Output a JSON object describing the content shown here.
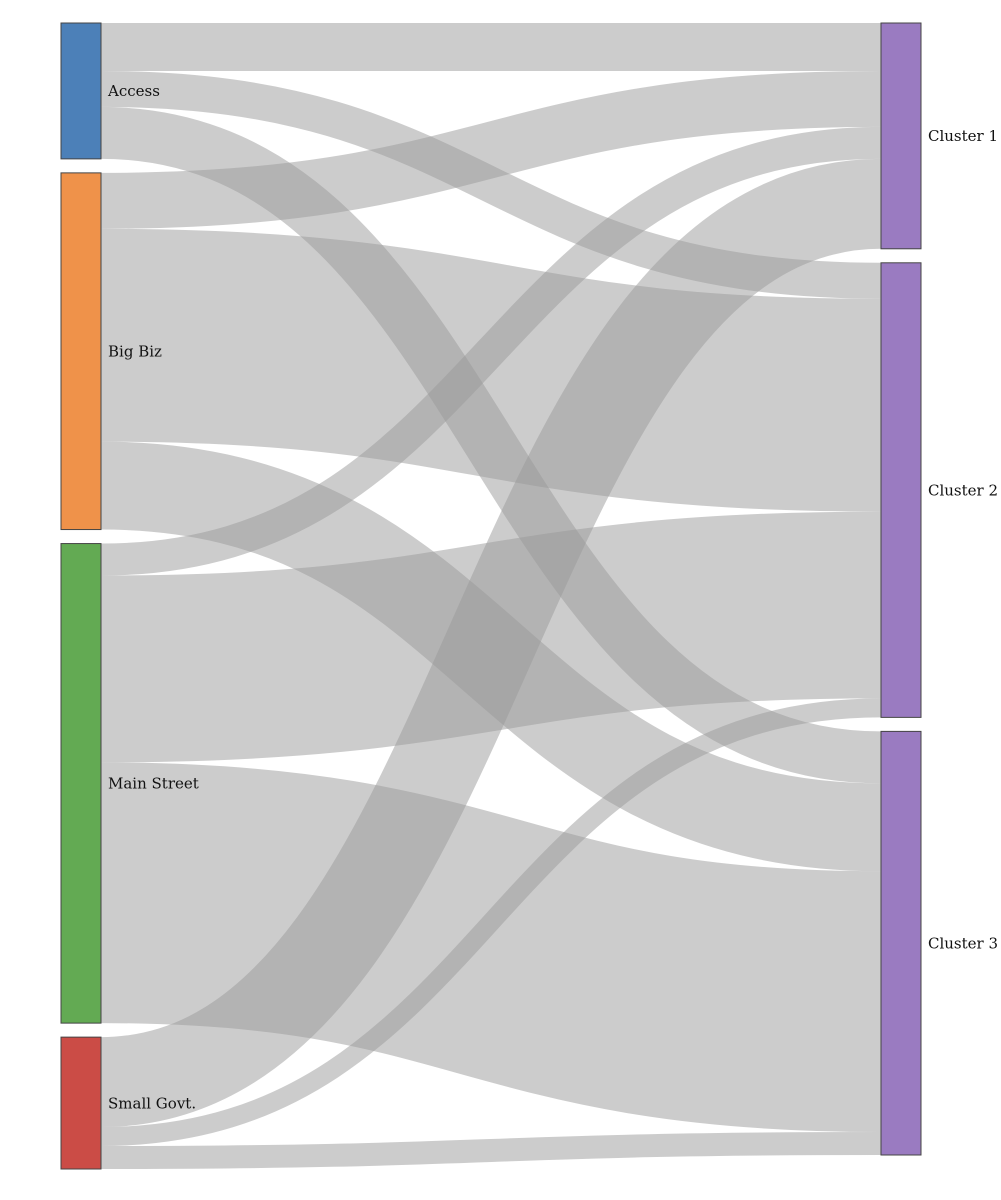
{
  "chart_data": {
    "type": "sankey",
    "link_color": "#999999",
    "link_opacity": 0.5,
    "sources": [
      {
        "id": "access",
        "name": "Access",
        "color": "#4c80b8"
      },
      {
        "id": "big_biz",
        "name": "Big Biz",
        "color": "#ef924a"
      },
      {
        "id": "main_street",
        "name": "Main Street",
        "color": "#63aa53"
      },
      {
        "id": "small_govt",
        "name": "Small Govt.",
        "color": "#cb4c46"
      }
    ],
    "targets": [
      {
        "id": "cluster1",
        "name": "Cluster 1",
        "color": "#9a7bc1"
      },
      {
        "id": "cluster2",
        "name": "Cluster 2",
        "color": "#9a7bc1"
      },
      {
        "id": "cluster3",
        "name": "Cluster 3",
        "color": "#9a7bc1"
      }
    ],
    "links": [
      {
        "source": "access",
        "target": "cluster1",
        "value": 48
      },
      {
        "source": "access",
        "target": "cluster2",
        "value": 36
      },
      {
        "source": "access",
        "target": "cluster3",
        "value": 52
      },
      {
        "source": "big_biz",
        "target": "cluster1",
        "value": 56
      },
      {
        "source": "big_biz",
        "target": "cluster2",
        "value": 213
      },
      {
        "source": "big_biz",
        "target": "cluster3",
        "value": 88
      },
      {
        "source": "main_street",
        "target": "cluster1",
        "value": 32
      },
      {
        "source": "main_street",
        "target": "cluster2",
        "value": 187
      },
      {
        "source": "main_street",
        "target": "cluster3",
        "value": 261
      },
      {
        "source": "small_govt",
        "target": "cluster1",
        "value": 90
      },
      {
        "source": "small_govt",
        "target": "cluster2",
        "value": 19
      },
      {
        "source": "small_govt",
        "target": "cluster3",
        "value": 23
      }
    ]
  }
}
